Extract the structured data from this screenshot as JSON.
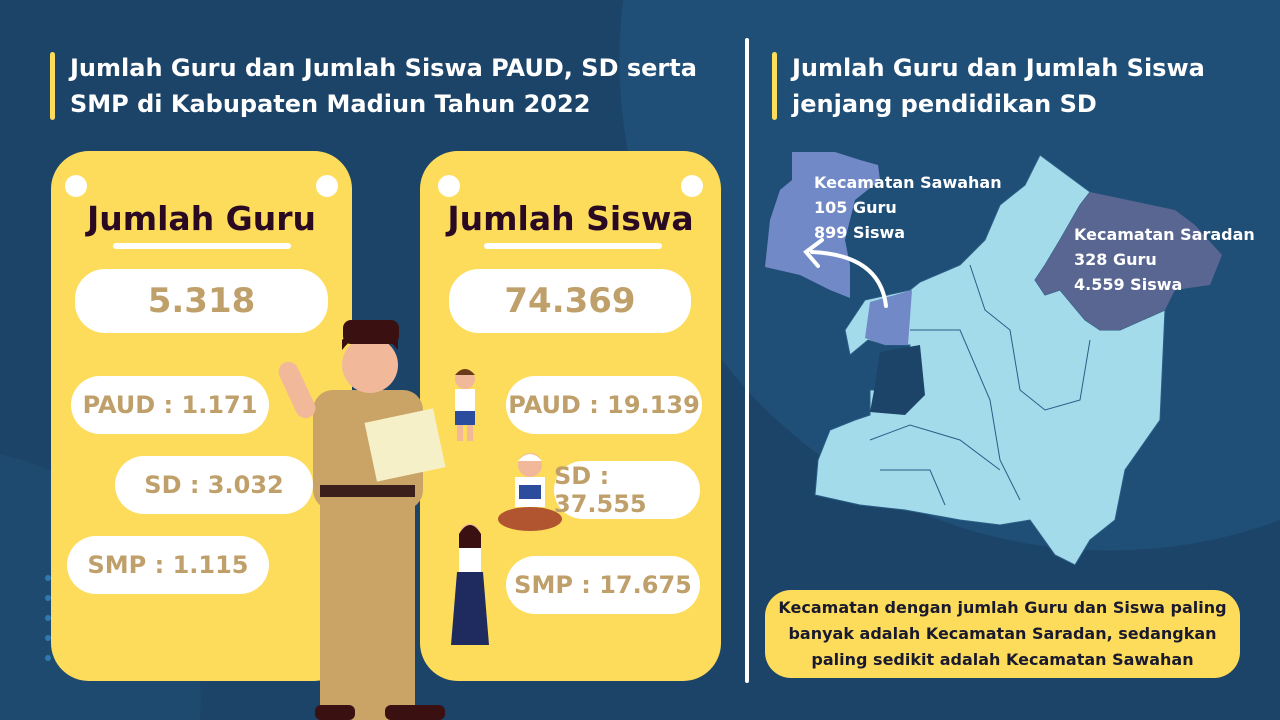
{
  "colors": {
    "background": "#1c4468",
    "accent_yellow": "#fddc5c",
    "number_text": "#bf9f6a",
    "map_base": "#a3dbeb",
    "map_sawahan": "#7189c6",
    "map_saradan": "#586691"
  },
  "left": {
    "title": "Jumlah Guru dan Jumlah Siswa PAUD, SD serta SMP di Kabupaten Madiun Tahun 2022",
    "guru": {
      "heading": "Jumlah Guru",
      "total": "5.318",
      "paud": "PAUD : 1.171",
      "sd": "SD : 3.032",
      "smp": "SMP : 1.115"
    },
    "siswa": {
      "heading": "Jumlah Siswa",
      "total": "74.369",
      "paud": "PAUD : 19.139",
      "sd": "SD : 37.555",
      "smp": "SMP : 17.675"
    }
  },
  "right": {
    "title": "Jumlah Guru dan Jumlah Siswa jenjang pendidikan SD",
    "sawahan": {
      "name": "Kecamatan Sawahan",
      "guru": "105 Guru",
      "siswa": "899 Siswa"
    },
    "saradan": {
      "name": "Kecamatan Saradan",
      "guru": "328 Guru",
      "siswa": "4.559 Siswa"
    },
    "note": "Kecamatan dengan jumlah Guru dan Siswa paling banyak adalah Kecamatan Saradan, sedangkan paling sedikit adalah Kecamatan Sawahan"
  }
}
